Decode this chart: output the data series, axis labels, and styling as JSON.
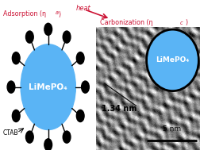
{
  "fig_width": 2.53,
  "fig_height": 1.89,
  "dpi": 100,
  "bg_color": "#ffffff",
  "blue_color": "#5ab4f5",
  "black": "#000000",
  "red_color": "#cc1133",
  "limepO4_label": "LiMePO₄",
  "ctab_label": "CTAB",
  "scale_bar_label": "5 nm",
  "distance_label": "1.34 nm",
  "num_spikes": 12,
  "adsorption_text": "Adsorption (ηa)",
  "heat_text": "heat",
  "carbonization_text": "Carbonization (ηc)"
}
